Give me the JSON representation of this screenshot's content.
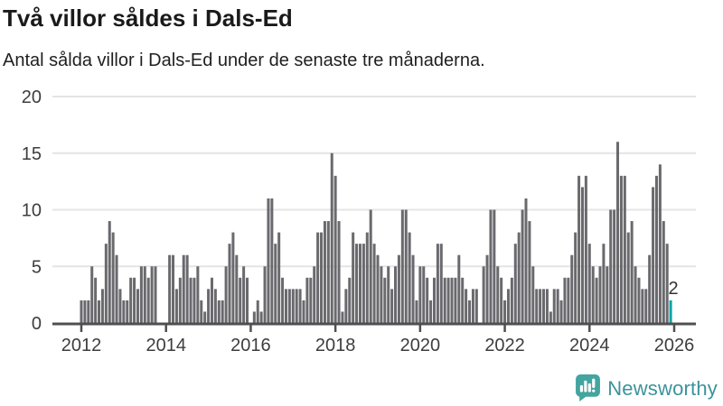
{
  "header": {
    "title": "Två villor såldes i Dals-Ed",
    "subtitle": "Antal sålda villor i Dals-Ed under de senaste tre månaderna."
  },
  "chart_data": {
    "type": "bar",
    "title": "Två villor såldes i Dals-Ed",
    "subtitle": "Antal sålda villor i Dals-Ed under de senaste tre månaderna.",
    "unit": "sålda villor per 3-månadersperiod",
    "frequency": "monthly",
    "x_start": "2012-01",
    "x_end": "2025-12",
    "values": [
      2,
      2,
      2,
      5,
      4,
      2,
      3,
      7,
      9,
      8,
      6,
      3,
      2,
      2,
      4,
      4,
      3,
      5,
      5,
      4,
      5,
      5,
      0,
      0,
      0,
      6,
      6,
      3,
      4,
      6,
      6,
      4,
      4,
      5,
      2,
      1,
      3,
      4,
      3,
      2,
      2,
      5,
      7,
      8,
      6,
      4,
      5,
      4,
      0,
      1,
      2,
      1,
      5,
      11,
      11,
      7,
      8,
      4,
      3,
      3,
      3,
      3,
      3,
      2,
      4,
      4,
      5,
      8,
      8,
      9,
      9,
      15,
      13,
      9,
      1,
      3,
      4,
      8,
      7,
      7,
      7,
      8,
      10,
      7,
      6,
      5,
      4,
      5,
      3,
      5,
      6,
      10,
      10,
      8,
      6,
      2,
      5,
      5,
      4,
      2,
      4,
      7,
      7,
      4,
      4,
      4,
      4,
      6,
      4,
      3,
      2,
      3,
      3,
      0,
      5,
      6,
      10,
      10,
      5,
      4,
      2,
      3,
      4,
      7,
      8,
      10,
      11,
      9,
      5,
      3,
      3,
      3,
      3,
      1,
      3,
      3,
      2,
      4,
      4,
      6,
      8,
      13,
      12,
      13,
      7,
      5,
      4,
      5,
      7,
      5,
      10,
      10,
      16,
      13,
      13,
      8,
      9,
      5,
      4,
      3,
      3,
      6,
      12,
      13,
      14,
      9,
      7,
      2
    ],
    "highlight": {
      "index_from_end": 1,
      "value": 2,
      "label": "2",
      "color": "#00a5a5"
    },
    "bar_color": "#69696e",
    "ylim": [
      0,
      20
    ],
    "yticks": [
      "0",
      "5",
      "10",
      "15",
      "20"
    ],
    "ytick_values": [
      0,
      5,
      10,
      15,
      20
    ],
    "xticks": [
      "2012",
      "2014",
      "2016",
      "2018",
      "2020",
      "2022",
      "2024",
      "2026"
    ],
    "grid": true,
    "legend": "none",
    "gridline_color": "#e4e4e4",
    "axis_color": "#4f4f4f",
    "tick_label_color": "#3d3d3d"
  },
  "footer": {
    "brand": "Newsworthy",
    "logo_icon": "bar-chart-speech-bubble-icon",
    "brand_text_color": "#3b939c",
    "logo_bg_color": "#44a49f"
  }
}
